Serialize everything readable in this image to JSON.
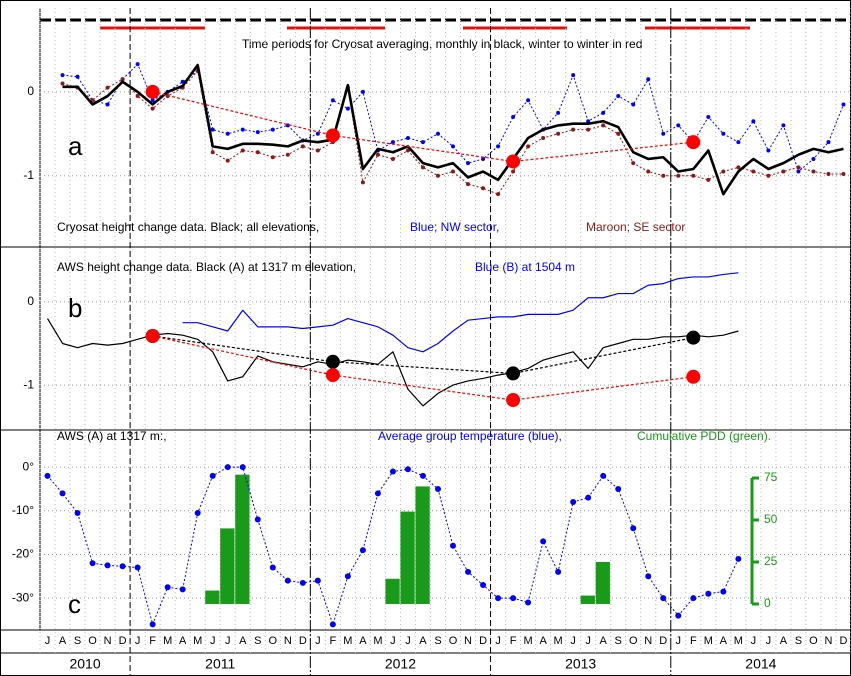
{
  "x_axis": {
    "xlim": [
      "2010-07",
      "2014-12"
    ],
    "months": [
      "J",
      "A",
      "S",
      "O",
      "N",
      "D",
      "J",
      "F",
      "M",
      "A",
      "M",
      "J",
      "J",
      "A",
      "S",
      "O",
      "N",
      "D",
      "J",
      "F",
      "M",
      "A",
      "M",
      "J",
      "J",
      "A",
      "S",
      "O",
      "N",
      "D",
      "J",
      "F",
      "M",
      "A",
      "M",
      "J",
      "J",
      "A",
      "S",
      "O",
      "N",
      "D",
      "J",
      "F",
      "M",
      "A",
      "M",
      "J",
      "J",
      "A",
      "S",
      "O",
      "N",
      "D"
    ],
    "years": [
      "2010",
      "2011",
      "2012",
      "2013",
      "2014"
    ]
  },
  "chart_data": [
    {
      "type": "line",
      "title": "Time periods for Cryosat averaging, monthly in black, winter to winter in red",
      "panel_label": "a",
      "annotations": [
        {
          "text": "Cryosat height change data. Black; all elevations,",
          "color": "#000000"
        },
        {
          "text": "Blue; NW sector,",
          "color": "#0000ff"
        },
        {
          "text": "Maroon; SE sector",
          "color": "#8b1a1a"
        }
      ],
      "ylim": [
        -1.85,
        1.0
      ],
      "yticks": [
        0,
        -1
      ],
      "grid": true,
      "x": [
        "2010-08",
        "2010-09",
        "2010-10",
        "2010-11",
        "2010-12",
        "2011-01",
        "2011-02",
        "2011-03",
        "2011-04",
        "2011-05",
        "2011-06",
        "2011-07",
        "2011-08",
        "2011-09",
        "2011-10",
        "2011-11",
        "2011-12",
        "2012-01",
        "2012-02",
        "2012-03",
        "2012-04",
        "2012-05",
        "2012-06",
        "2012-07",
        "2012-08",
        "2012-09",
        "2012-10",
        "2012-11",
        "2012-12",
        "2013-01",
        "2013-02",
        "2013-03",
        "2013-04",
        "2013-05",
        "2013-06",
        "2013-07",
        "2013-08",
        "2013-09",
        "2013-10",
        "2013-11",
        "2013-12",
        "2014-01",
        "2014-02",
        "2014-03",
        "2014-04",
        "2014-05",
        "2014-06",
        "2014-07",
        "2014-08",
        "2014-09",
        "2014-10",
        "2014-11",
        "2014-12"
      ],
      "series": [
        {
          "color": "#0000ff",
          "line": "dotted",
          "marker": "small",
          "values": [
            0.2,
            0.18,
            -0.1,
            -0.15,
            0.15,
            0.33,
            -0.1,
            0,
            0.12,
            0.25,
            -0.45,
            -0.5,
            -0.45,
            -0.48,
            -0.45,
            -0.4,
            -0.58,
            -0.5,
            -0.1,
            -0.2,
            0,
            -0.7,
            -0.6,
            -0.55,
            -0.6,
            -0.5,
            -0.65,
            -0.85,
            -0.8,
            -0.65,
            -0.3,
            -0.1,
            -0.45,
            -0.25,
            0.2,
            -0.35,
            -0.25,
            -0.05,
            -0.15,
            0.15,
            -0.5,
            -0.4,
            -0.6,
            -0.3,
            -0.5,
            -0.6,
            -0.35,
            -0.7,
            -0.4,
            -0.95,
            -0.8,
            -0.6,
            -0.15
          ]
        },
        {
          "color": "#8b1a1a",
          "line": "dotted",
          "marker": "small",
          "values": [
            0.1,
            0.05,
            -0.1,
            0.05,
            0.15,
            -0.05,
            -0.2,
            -0.05,
            0.05,
            0.25,
            -0.72,
            -0.82,
            -0.7,
            -0.72,
            -0.78,
            -0.75,
            -0.65,
            -0.7,
            -0.6,
            0.05,
            -1.08,
            -0.75,
            -0.8,
            -0.7,
            -0.9,
            -1.0,
            -0.95,
            -1.1,
            -1.15,
            -1.22,
            -0.95,
            -0.65,
            -0.55,
            -0.5,
            -0.45,
            -0.45,
            -0.4,
            -0.5,
            -0.85,
            -0.95,
            -1.0,
            -1.0,
            -1.0,
            -1.05,
            -0.95,
            -0.9,
            -0.95,
            -1.0,
            -0.95,
            -0.9,
            -0.95,
            -0.98,
            -0.98
          ]
        },
        {
          "color": "#000000",
          "line": "bold",
          "marker": "none",
          "values": [
            0.06,
            0.06,
            -0.15,
            -0.05,
            0.12,
            0,
            -0.15,
            0,
            0.07,
            0.32,
            -0.65,
            -0.68,
            -0.62,
            -0.62,
            -0.63,
            -0.65,
            -0.58,
            -0.6,
            -0.57,
            0.08,
            -0.92,
            -0.68,
            -0.72,
            -0.65,
            -0.85,
            -0.9,
            -0.85,
            -1.02,
            -0.95,
            -1.05,
            -0.8,
            -0.55,
            -0.45,
            -0.4,
            -0.38,
            -0.38,
            -0.35,
            -0.42,
            -0.72,
            -0.8,
            -0.78,
            -0.95,
            -0.92,
            -0.7,
            -1.22,
            -0.95,
            -0.8,
            -0.92,
            -0.85,
            -0.75,
            -0.68,
            -0.72,
            -0.68
          ]
        },
        {
          "color": "#ff0000",
          "line": "dashed",
          "marker": "large",
          "x": [
            "2011-02",
            "2012-02",
            "2013-02",
            "2014-02"
          ],
          "values": [
            0,
            -0.52,
            -0.83,
            -0.6
          ]
        }
      ]
    },
    {
      "type": "line",
      "panel_label": "b",
      "annotations": [
        {
          "text": "AWS height change data.  Black (A) at 1317 m elevation,",
          "color": "#000000"
        },
        {
          "text": "Blue (B) at 1504 m",
          "color": "#0000ff"
        }
      ],
      "ylim": [
        -1.54,
        0.66
      ],
      "yticks": [
        0,
        -1
      ],
      "grid": true,
      "series": [
        {
          "color": "#000000",
          "line": "solid",
          "marker": "none",
          "x": [
            "2010-07",
            "2010-08",
            "2010-09",
            "2010-10",
            "2010-11",
            "2010-12",
            "2011-01",
            "2011-02",
            "2011-03",
            "2011-04",
            "2011-05",
            "2011-06",
            "2011-07",
            "2011-08",
            "2011-09",
            "2011-10",
            "2011-11",
            "2011-12",
            "2012-01",
            "2012-02",
            "2012-03",
            "2012-04",
            "2012-05",
            "2012-06",
            "2012-07",
            "2012-08",
            "2012-09",
            "2012-10",
            "2012-11",
            "2012-12",
            "2013-01",
            "2013-02",
            "2013-03",
            "2013-04",
            "2013-05",
            "2013-06",
            "2013-07",
            "2013-08",
            "2013-09",
            "2013-10",
            "2013-11",
            "2013-12",
            "2014-01",
            "2014-02",
            "2014-03",
            "2014-04",
            "2014-05"
          ],
          "values": [
            -0.2,
            -0.5,
            -0.55,
            -0.5,
            -0.52,
            -0.5,
            -0.45,
            -0.4,
            -0.38,
            -0.4,
            -0.45,
            -0.6,
            -0.95,
            -0.9,
            -0.65,
            -0.72,
            -0.75,
            -0.78,
            -0.72,
            -0.75,
            -0.7,
            -0.72,
            -0.75,
            -0.6,
            -1.05,
            -1.25,
            -1.1,
            -1.0,
            -0.95,
            -0.92,
            -0.88,
            -0.85,
            -0.8,
            -0.7,
            -0.65,
            -0.6,
            -0.8,
            -0.55,
            -0.5,
            -0.45,
            -0.45,
            -0.42,
            -0.42,
            -0.4,
            -0.42,
            -0.4,
            -0.35
          ]
        },
        {
          "color": "#0000ff",
          "line": "solid",
          "marker": "none",
          "x": [
            "2011-04",
            "2011-05",
            "2011-06",
            "2011-07",
            "2011-08",
            "2011-09",
            "2011-10",
            "2011-11",
            "2011-12",
            "2012-01",
            "2012-02",
            "2012-03",
            "2012-04",
            "2012-05",
            "2012-06",
            "2012-07",
            "2012-08",
            "2012-09",
            "2012-10",
            "2012-11",
            "2012-12",
            "2013-01",
            "2013-02",
            "2013-03",
            "2013-04",
            "2013-05",
            "2013-06",
            "2013-07",
            "2013-08",
            "2013-09",
            "2013-10",
            "2013-11",
            "2013-12",
            "2014-01",
            "2014-02",
            "2014-03",
            "2014-04",
            "2014-05"
          ],
          "values": [
            -0.25,
            -0.25,
            -0.3,
            -0.35,
            -0.1,
            -0.3,
            -0.3,
            -0.3,
            -0.32,
            -0.3,
            -0.28,
            -0.2,
            -0.25,
            -0.3,
            -0.4,
            -0.55,
            -0.6,
            -0.5,
            -0.35,
            -0.22,
            -0.2,
            -0.18,
            -0.18,
            -0.15,
            -0.15,
            -0.15,
            -0.1,
            0.05,
            0.05,
            0.1,
            0.1,
            0.2,
            0.22,
            0.28,
            0.3,
            0.3,
            0.33,
            0.35
          ]
        },
        {
          "color": "#000000",
          "line": "dashed",
          "marker": "large",
          "x": [
            "2011-02",
            "2012-02",
            "2013-02",
            "2014-02"
          ],
          "values": [
            -0.41,
            -0.72,
            -0.86,
            -0.43
          ]
        },
        {
          "color": "#ff0000",
          "line": "dashed",
          "marker": "large",
          "x": [
            "2011-02",
            "2012-02",
            "2013-02",
            "2014-02"
          ],
          "values": [
            -0.41,
            -0.88,
            -1.18,
            -0.9
          ]
        }
      ]
    },
    {
      "type": "line",
      "panel_label": "c",
      "annotations": [
        {
          "text": "AWS (A) at 1317 m:,",
          "color": "#000000"
        },
        {
          "text": "Average group temperature (blue),",
          "color": "#0000ff"
        },
        {
          "text": "Cumulative PDD (green).",
          "color": "#1a9a1a"
        }
      ],
      "ylim": [
        -37.3,
        8.5
      ],
      "yticks": [
        {
          "value": 0,
          "label": "0°"
        },
        {
          "value": -10,
          "label": "-10°"
        },
        {
          "value": -20,
          "label": "-20°"
        },
        {
          "value": -30,
          "label": "-30°"
        }
      ],
      "grid": true,
      "y2lim": [
        -15.5,
        103.6
      ],
      "y2ticks": [
        0,
        25,
        50,
        75
      ],
      "y2color": "#1a9a1a",
      "series": [
        {
          "type": "bar",
          "axis": "y2",
          "color": "#1a9a1a",
          "x": [
            "2011-06",
            "2011-07",
            "2011-08",
            "2012-06",
            "2012-07",
            "2012-08",
            "2013-07",
            "2013-08"
          ],
          "values": [
            8,
            45,
            77,
            15,
            55,
            70,
            5,
            25
          ]
        },
        {
          "color": "#0000ff",
          "line": "dotted",
          "marker": "medium",
          "x": [
            "2010-07",
            "2010-08",
            "2010-09",
            "2010-10",
            "2010-11",
            "2010-12",
            "2011-01",
            "2011-02",
            "2011-03",
            "2011-04",
            "2011-05",
            "2011-06",
            "2011-07",
            "2011-08",
            "2011-09",
            "2011-10",
            "2011-11",
            "2011-12",
            "2012-01",
            "2012-02",
            "2012-03",
            "2012-04",
            "2012-05",
            "2012-06",
            "2012-07",
            "2012-08",
            "2012-09",
            "2012-10",
            "2012-11",
            "2012-12",
            "2013-01",
            "2013-02",
            "2013-03",
            "2013-04",
            "2013-05",
            "2013-06",
            "2013-07",
            "2013-08",
            "2013-09",
            "2013-10",
            "2013-11",
            "2013-12",
            "2014-01",
            "2014-02",
            "2014-03",
            "2014-04",
            "2014-05"
          ],
          "values": [
            -2,
            -6,
            -10.5,
            -22,
            -22.5,
            -22.7,
            -23,
            -36,
            -27.5,
            -28,
            -10.5,
            -2,
            0,
            0,
            -12,
            -23,
            -26,
            -26.5,
            -26,
            -36,
            -25,
            -19,
            -6,
            -1,
            -0.5,
            -2,
            -5,
            -18,
            -24,
            -27,
            -30,
            -30,
            -31,
            -17,
            -24,
            -8,
            -7,
            -2,
            -5,
            -14,
            -25,
            -30,
            -34,
            -30,
            -29,
            -28.5,
            -21
          ]
        }
      ]
    }
  ]
}
